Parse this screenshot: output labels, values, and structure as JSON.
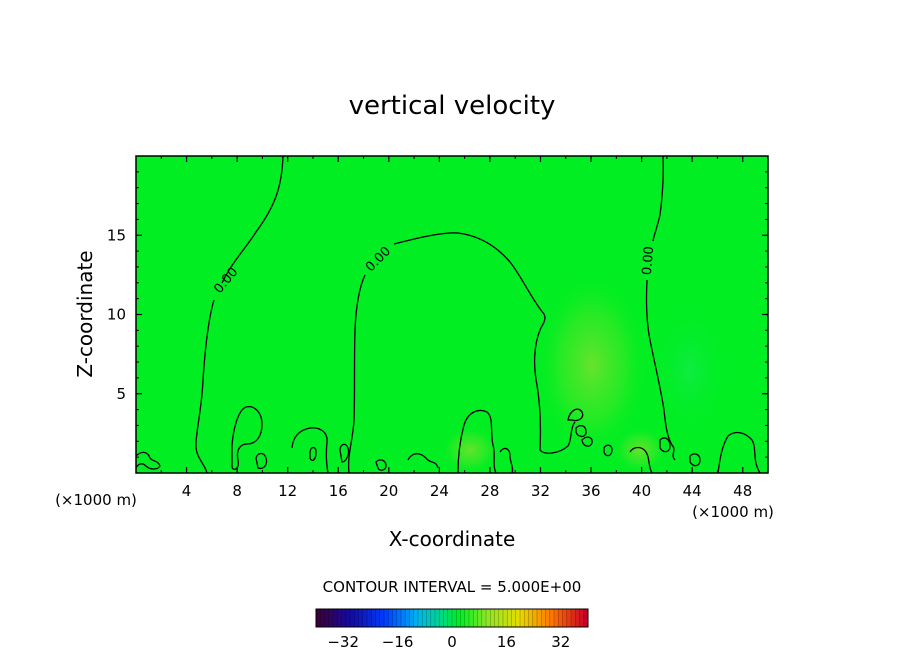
{
  "chart_data": {
    "type": "heatmap",
    "title": "vertical velocity",
    "xlabel": "X-coordinate",
    "ylabel": "Z-coordinate",
    "x_unit": "(×1000 m)",
    "xlim": [
      0,
      50
    ],
    "ylim": [
      0,
      20
    ],
    "x_ticks": [
      4,
      8,
      12,
      16,
      20,
      24,
      28,
      32,
      36,
      40,
      44,
      48
    ],
    "y_ticks": [
      5,
      10,
      15
    ],
    "x_tick_labels": [
      "4",
      "8",
      "12",
      "16",
      "20",
      "24",
      "28",
      "32",
      "36",
      "40",
      "44",
      "48"
    ],
    "y_tick_labels": [
      "5",
      "10",
      "15"
    ],
    "contour_interval_text": "CONTOUR INTERVAL = 5.000E+00",
    "contour_labels": [
      "0.00",
      "0.00",
      "0.00"
    ],
    "contour_level": 0,
    "colorbar": {
      "min": -40,
      "max": 40,
      "ticks": [
        -32,
        -16,
        0,
        16,
        32
      ],
      "tick_labels": [
        "−32",
        "−16",
        "0",
        "16",
        "32"
      ]
    },
    "field_background_value": 0,
    "colors": {
      "field": "#00ee22",
      "positive_patch": "#7de02c",
      "contour": "#000000"
    }
  }
}
